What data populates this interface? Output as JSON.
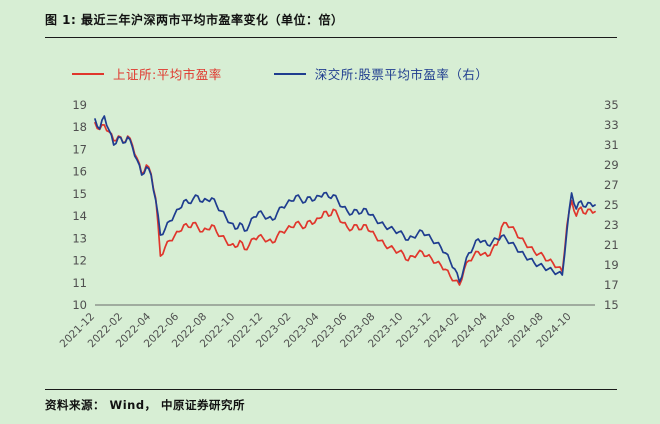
{
  "page": {
    "title": "图 1: 最近三年沪深两市平均市盈率变化（单位：倍）",
    "footer": "资料来源： Wind， 中原证券研究所"
  },
  "legend": {
    "items": [
      {
        "label": "上证所:平均市盈率",
        "color": "#e0362c"
      },
      {
        "label": "深交所:股票平均市盈率（右）",
        "color": "#1f3d8f"
      }
    ]
  },
  "colors": {
    "background": "#d7eed4",
    "axis_text": "#4f4f4f",
    "axis_line": "#6a6a6a",
    "divider": "#1a1a1a"
  },
  "chart_data": {
    "type": "line",
    "title": "最近三年沪深两市平均市盈率变化",
    "unit": "倍",
    "grid": false,
    "legend_position": "top",
    "x_tick_every": 6,
    "x_tick_labels": [
      "2021-12",
      "2022-02",
      "2022-04",
      "2022-06",
      "2022-08",
      "2022-10",
      "2022-12",
      "2023-02",
      "2023-04",
      "2023-06",
      "2023-08",
      "2023-10",
      "2023-12",
      "2024-02",
      "2024-04",
      "2024-06",
      "2024-08",
      "2024-10"
    ],
    "left_axis": {
      "min": 10,
      "max": 19,
      "ticks": [
        19,
        18,
        17,
        16,
        15,
        14,
        13,
        12,
        11,
        10
      ]
    },
    "right_axis": {
      "min": 15,
      "max": 35,
      "ticks": [
        35,
        33,
        31,
        29,
        27,
        25,
        23,
        21,
        19,
        17,
        15
      ]
    },
    "series": [
      {
        "name": "上证所:平均市盈率",
        "axis": "left",
        "color": "#e0362c",
        "values": [
          18.2,
          17.9,
          18.1,
          17.8,
          17.4,
          17.6,
          17.3,
          17.6,
          17.2,
          16.6,
          15.9,
          16.3,
          15.9,
          14.8,
          12.2,
          12.6,
          12.9,
          13.1,
          13.3,
          13.6,
          13.5,
          13.7,
          13.5,
          13.3,
          13.4,
          13.6,
          13.3,
          13.1,
          12.9,
          12.7,
          12.6,
          12.9,
          12.5,
          12.7,
          13.0,
          13.1,
          13.0,
          12.9,
          12.8,
          13.1,
          13.3,
          13.4,
          13.5,
          13.7,
          13.6,
          13.5,
          13.8,
          13.7,
          13.9,
          14.2,
          14.0,
          14.3,
          14.0,
          13.7,
          13.5,
          13.4,
          13.6,
          13.4,
          13.6,
          13.3,
          13.1,
          12.9,
          12.7,
          12.6,
          12.5,
          12.4,
          12.3,
          12.0,
          12.2,
          12.3,
          12.4,
          12.2,
          12.1,
          11.9,
          11.8,
          11.6,
          11.3,
          11.1,
          10.9,
          11.6,
          12.0,
          12.2,
          12.4,
          12.3,
          12.2,
          12.5,
          12.7,
          13.5,
          13.7,
          13.5,
          13.3,
          13.0,
          12.8,
          12.6,
          12.4,
          12.3,
          12.2,
          12.0,
          11.9,
          11.7,
          11.5,
          13.6,
          14.7,
          14.0,
          14.4,
          14.1,
          14.3,
          14.2
        ]
      },
      {
        "name": "深交所:股票平均市盈率（右）",
        "axis": "right",
        "color": "#1f3d8f",
        "values": [
          33.6,
          32.6,
          33.9,
          32.5,
          31.0,
          31.8,
          31.2,
          31.8,
          30.8,
          29.5,
          28.0,
          28.8,
          28.0,
          25.5,
          22.0,
          22.6,
          23.4,
          24.0,
          24.6,
          25.4,
          25.2,
          25.6,
          25.9,
          25.3,
          25.5,
          25.7,
          25.0,
          24.4,
          23.8,
          23.2,
          22.6,
          23.2,
          22.4,
          23.0,
          23.8,
          24.3,
          24.0,
          23.7,
          23.5,
          24.2,
          24.8,
          25.1,
          25.4,
          25.9,
          25.6,
          25.3,
          25.8,
          25.5,
          25.9,
          26.2,
          25.8,
          26.0,
          25.4,
          24.8,
          24.4,
          24.1,
          24.5,
          24.2,
          24.6,
          24.0,
          23.6,
          23.2,
          22.9,
          22.7,
          22.5,
          22.3,
          22.0,
          21.5,
          21.8,
          22.1,
          22.4,
          22.0,
          21.6,
          21.2,
          20.8,
          20.2,
          19.4,
          18.6,
          17.3,
          18.8,
          20.2,
          20.8,
          21.6,
          21.4,
          21.0,
          21.3,
          21.6,
          21.9,
          21.6,
          21.2,
          20.8,
          20.3,
          19.9,
          19.6,
          19.2,
          19.0,
          18.8,
          18.6,
          18.4,
          18.2,
          18.0,
          22.5,
          26.2,
          24.6,
          25.4,
          24.8,
          25.2,
          25.0
        ]
      }
    ]
  }
}
